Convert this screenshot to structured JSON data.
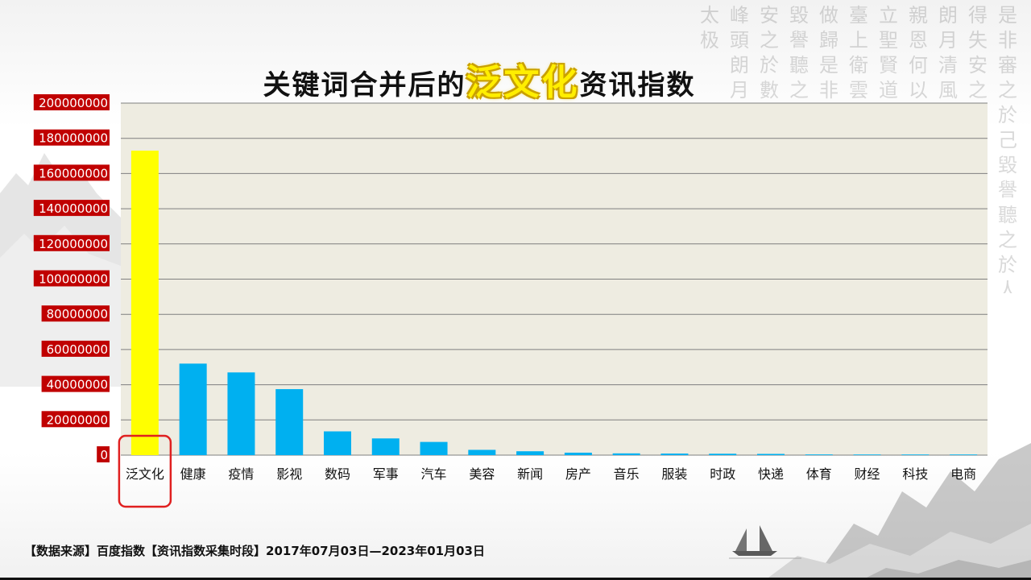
{
  "title": {
    "before": "关键词合并后的",
    "highlight": "泛文化",
    "after": "资讯指数"
  },
  "footer": {
    "source": "【数据来源】百度指数【资讯指数采集时段】2017年07月03日—2023年01月03日"
  },
  "calligraphy": [
    "是非審之於己毀譽聽之於人",
    "得失安之於數",
    "朗月清風",
    "親恩何以報",
    "立聖賢道",
    "臺上衛雲",
    "做歸是非",
    "毀譽聽之",
    "安之於數",
    "峰頭朗月",
    "太极"
  ],
  "chart_data": {
    "type": "bar",
    "categories": [
      "泛文化",
      "健康",
      "疫情",
      "影视",
      "数码",
      "军事",
      "汽车",
      "美容",
      "新闻",
      "房产",
      "音乐",
      "服装",
      "时政",
      "快递",
      "体育",
      "财经",
      "科技",
      "电商"
    ],
    "values": [
      173000000,
      52000000,
      47000000,
      37500000,
      13500000,
      9500000,
      7500000,
      3000000,
      2200000,
      1400000,
      1000000,
      900000,
      800000,
      700000,
      400000,
      100000,
      100000,
      100000
    ],
    "ylim": [
      0,
      200000000
    ],
    "yticks": [
      "0",
      "20000000",
      "40000000",
      "60000000",
      "80000000",
      "100000000",
      "120000000",
      "140000000",
      "160000000",
      "180000000",
      "200000000"
    ],
    "highlight_index": 0,
    "colors": {
      "bar": "#00b0f0",
      "highlight_bar": "#ffff00",
      "plot_bg": "#eeece1",
      "gridline": "#7f7f7f",
      "ytick_bg": "#c00000",
      "ytick_text": "#ffffff",
      "highlight_box": "#e02020"
    },
    "grid": true,
    "legend": "none"
  }
}
